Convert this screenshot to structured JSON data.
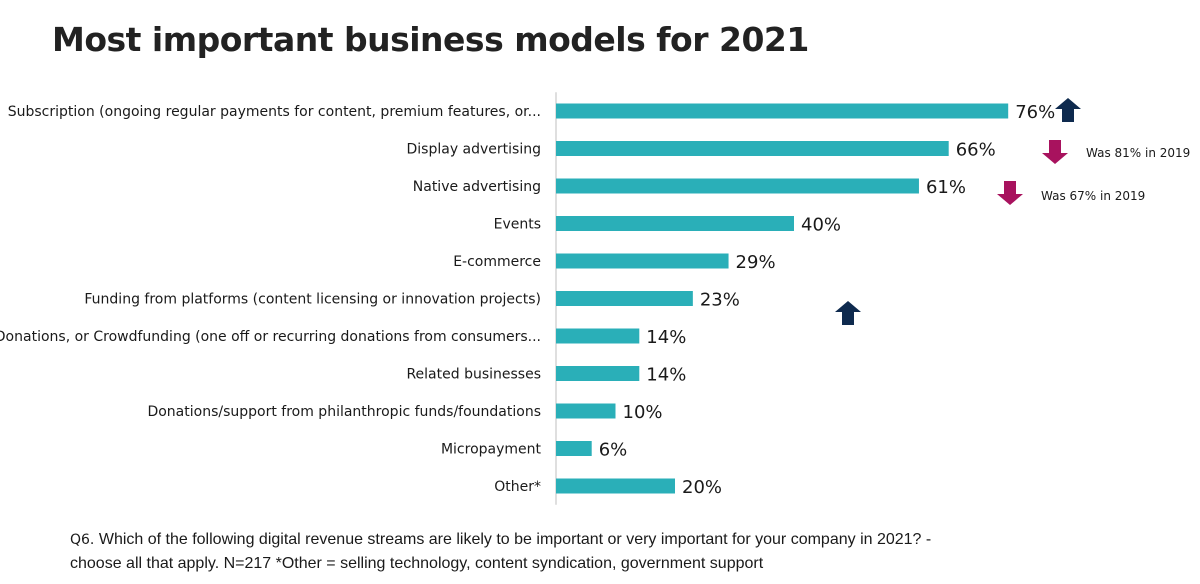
{
  "title": "Most important business models for 2021",
  "chart_data": {
    "type": "bar",
    "orientation": "horizontal",
    "title": "Most important business models for 2021",
    "categories": [
      "Subscription (ongoing regular payments for content, premium features, or...",
      "Display advertising",
      "Native advertising",
      "Events",
      "E-commerce",
      "Funding from platforms (content licensing or innovation projects)",
      "Donations, or Crowdfunding (one off or recurring donations from consumers...",
      "Related businesses",
      "Donations/support from philanthropic funds/foundations",
      "Micropayment",
      "Other*"
    ],
    "values": [
      76,
      66,
      61,
      40,
      29,
      23,
      14,
      14,
      10,
      6,
      20
    ],
    "value_labels": [
      "76%",
      "66%",
      "61%",
      "40%",
      "29%",
      "23%",
      "14%",
      "14%",
      "10%",
      "6%",
      "20%"
    ],
    "unit": "%",
    "xlim": [
      0,
      100
    ],
    "grid": false,
    "legend": "none",
    "bar_color": "#2AAFB8",
    "annotations": [
      {
        "category_index": 0,
        "symbol": "arrow-up",
        "color": "#0E2A4E",
        "text": ""
      },
      {
        "category_index": 1,
        "symbol": "arrow-down",
        "color": "#A8125E",
        "text": "Was 81% in 2019"
      },
      {
        "category_index": 2,
        "symbol": "arrow-down",
        "color": "#A8125E",
        "text": "Was 67% in 2019"
      },
      {
        "category_index": 5,
        "symbol": "arrow-up",
        "color": "#0E2A4E",
        "text": ""
      }
    ]
  },
  "footnote": {
    "qnum": "Q6.",
    "text": " Which of the following digital revenue streams are likely to be important or very important for your company in 2021? - choose all that apply.  N=217 *Other = selling technology, content syndication, government support"
  },
  "colors": {
    "bar": "#2AAFB8",
    "arrow_up": "#0E2A4E",
    "arrow_down": "#A8125E",
    "axis": "#bfbfbf"
  }
}
